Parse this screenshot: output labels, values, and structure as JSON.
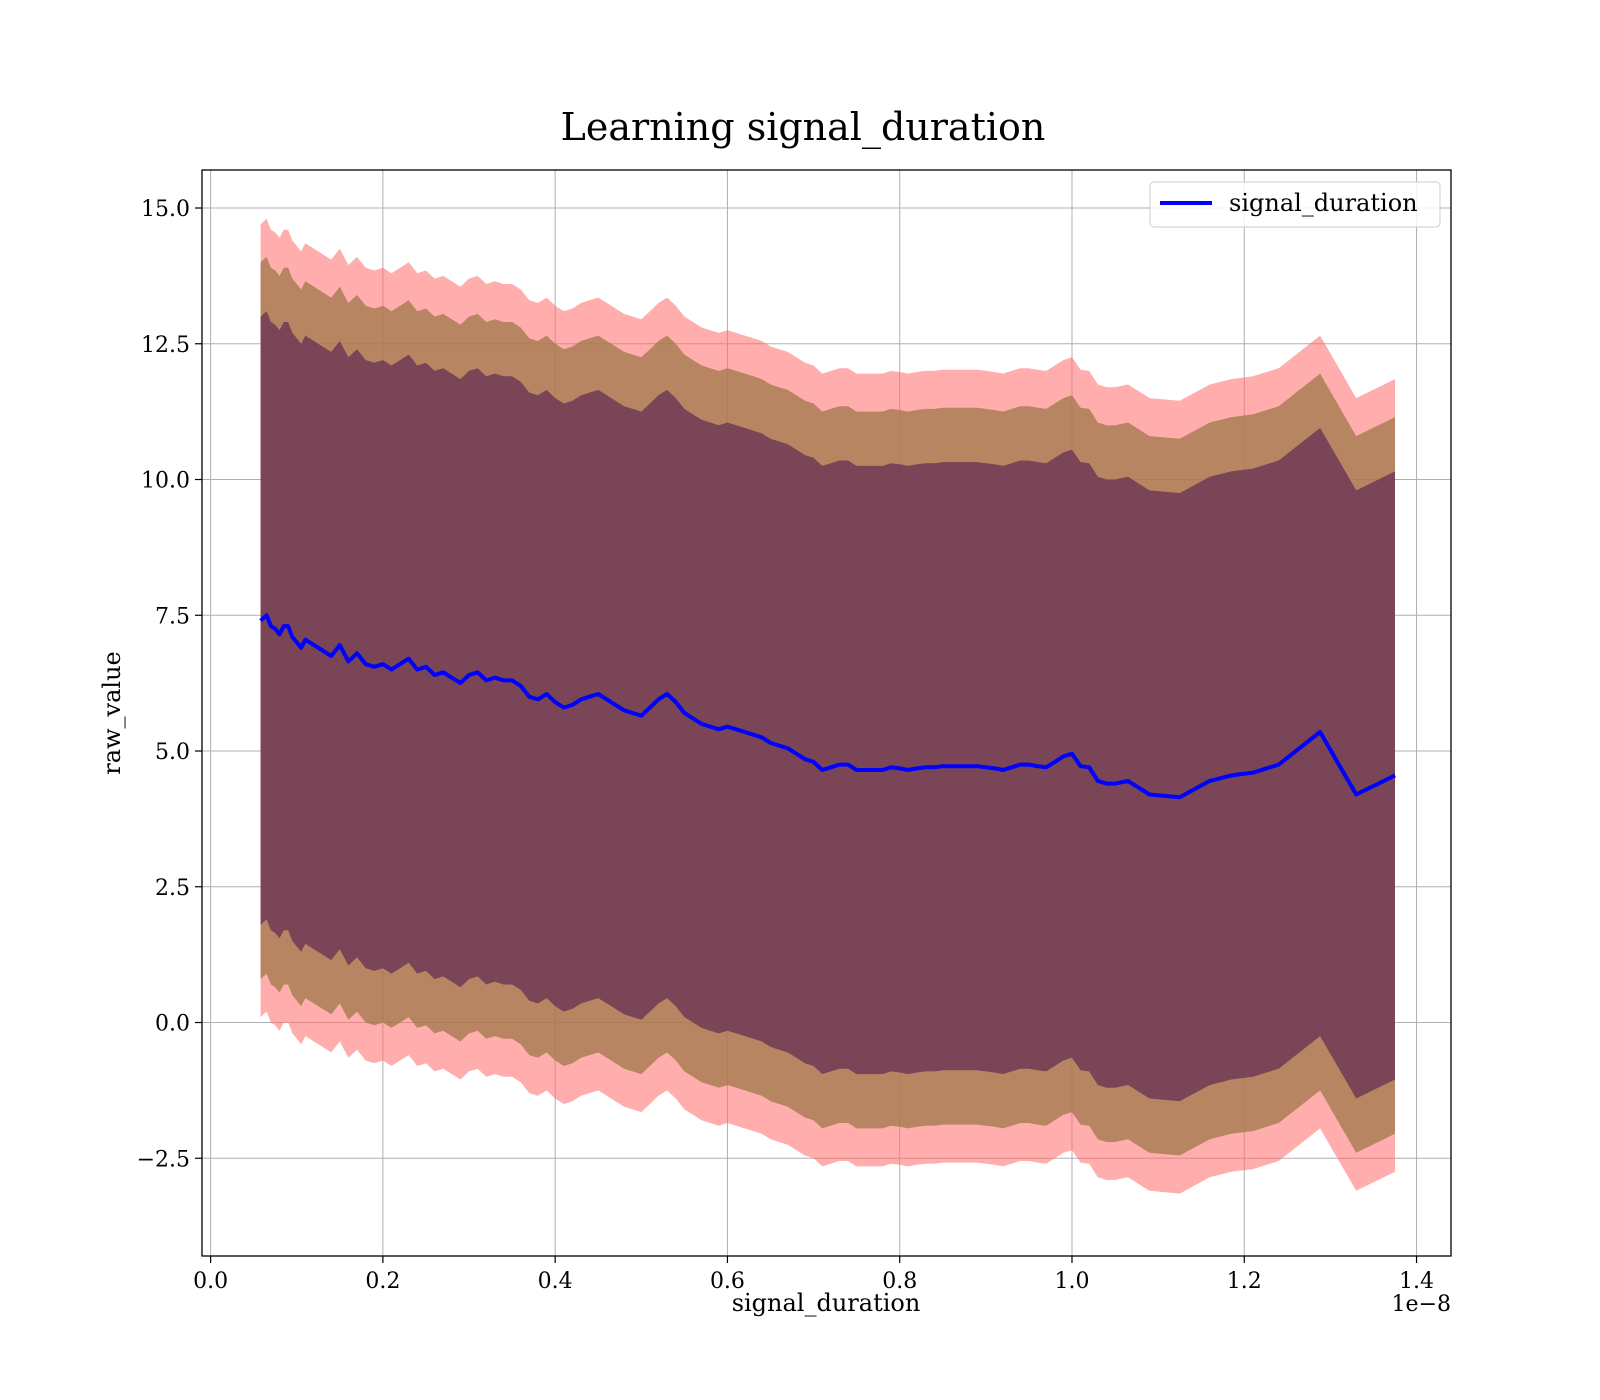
{
  "chart_data": {
    "type": "line",
    "title": "Learning signal_duration",
    "xlabel": "signal_duration",
    "ylabel": "raw_value",
    "x_offset_label": "1e−8",
    "xlim": [
      -0.01,
      1.44
    ],
    "ylim": [
      -4.3,
      15.7
    ],
    "xticks": [
      0.0,
      0.2,
      0.4,
      0.6,
      0.8,
      1.0,
      1.2,
      1.4
    ],
    "xtick_labels": [
      "0.0",
      "0.2",
      "0.4",
      "0.6",
      "0.8",
      "1.0",
      "1.2",
      "1.4"
    ],
    "yticks": [
      -2.5,
      0.0,
      2.5,
      5.0,
      7.5,
      10.0,
      12.5,
      15.0
    ],
    "ytick_labels": [
      "−2.5",
      "0.0",
      "2.5",
      "5.0",
      "7.5",
      "10.0",
      "12.5",
      "15.0"
    ],
    "grid": true,
    "legend": {
      "position": "top-right",
      "entries": [
        "signal_duration"
      ]
    },
    "colors": {
      "line": "#0000ff",
      "band_outer": "#ff6a6a",
      "band_middle": "#a0784a",
      "band_inner": "#6e3a55",
      "grid": "#b0b0b0"
    },
    "band_half_widths": [
      5.6,
      6.6,
      7.3
    ],
    "series": [
      {
        "name": "signal_duration",
        "x": [
          0.058,
          0.065,
          0.07,
          0.075,
          0.08,
          0.085,
          0.09,
          0.095,
          0.1,
          0.105,
          0.11,
          0.12,
          0.13,
          0.14,
          0.15,
          0.16,
          0.17,
          0.18,
          0.19,
          0.2,
          0.21,
          0.22,
          0.23,
          0.24,
          0.25,
          0.26,
          0.27,
          0.28,
          0.29,
          0.3,
          0.31,
          0.32,
          0.33,
          0.34,
          0.35,
          0.36,
          0.37,
          0.38,
          0.39,
          0.4,
          0.41,
          0.42,
          0.43,
          0.44,
          0.45,
          0.46,
          0.47,
          0.48,
          0.49,
          0.5,
          0.51,
          0.52,
          0.53,
          0.54,
          0.55,
          0.56,
          0.57,
          0.58,
          0.59,
          0.6,
          0.61,
          0.62,
          0.63,
          0.64,
          0.65,
          0.66,
          0.67,
          0.68,
          0.69,
          0.7,
          0.71,
          0.72,
          0.73,
          0.74,
          0.75,
          0.76,
          0.77,
          0.78,
          0.79,
          0.8,
          0.81,
          0.82,
          0.83,
          0.84,
          0.85,
          0.86,
          0.87,
          0.88,
          0.89,
          0.9,
          0.91,
          0.92,
          0.93,
          0.94,
          0.95,
          0.96,
          0.97,
          0.98,
          0.99,
          1.0,
          1.01,
          1.02,
          1.03,
          1.04,
          1.05,
          1.065,
          1.09,
          1.125,
          1.16,
          1.185,
          1.21,
          1.24,
          1.288,
          1.33,
          1.375
        ],
        "y": [
          7.4,
          7.5,
          7.3,
          7.25,
          7.15,
          7.3,
          7.3,
          7.1,
          7.0,
          6.9,
          7.05,
          6.95,
          6.85,
          6.75,
          6.95,
          6.65,
          6.8,
          6.6,
          6.55,
          6.6,
          6.5,
          6.6,
          6.7,
          6.5,
          6.55,
          6.4,
          6.45,
          6.35,
          6.25,
          6.4,
          6.45,
          6.3,
          6.35,
          6.3,
          6.3,
          6.2,
          6.0,
          5.95,
          6.05,
          5.9,
          5.8,
          5.85,
          5.95,
          6.0,
          6.05,
          5.95,
          5.85,
          5.75,
          5.7,
          5.65,
          5.8,
          5.95,
          6.05,
          5.9,
          5.7,
          5.6,
          5.5,
          5.45,
          5.4,
          5.45,
          5.4,
          5.35,
          5.3,
          5.25,
          5.15,
          5.1,
          5.05,
          4.95,
          4.85,
          4.8,
          4.65,
          4.7,
          4.75,
          4.75,
          4.65,
          4.65,
          4.65,
          4.65,
          4.7,
          4.68,
          4.65,
          4.68,
          4.7,
          4.7,
          4.72,
          4.72,
          4.72,
          4.72,
          4.72,
          4.7,
          4.68,
          4.65,
          4.7,
          4.75,
          4.75,
          4.72,
          4.7,
          4.8,
          4.9,
          4.95,
          4.72,
          4.7,
          4.45,
          4.4,
          4.4,
          4.45,
          4.2,
          4.15,
          4.45,
          4.55,
          4.6,
          4.75,
          5.35,
          4.2,
          4.55
        ]
      }
    ]
  }
}
